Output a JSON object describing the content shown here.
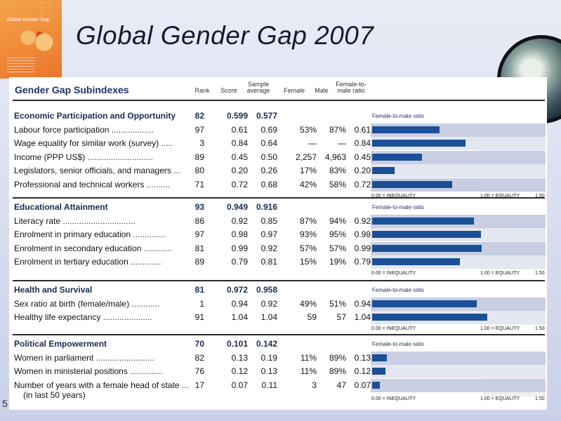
{
  "slide": {
    "title": "Global Gender Gap 2007",
    "page_number": "5",
    "cover_title": "Global Gender Gap"
  },
  "table": {
    "heading": "Gender Gap Subindexes",
    "columns": {
      "rank": "Rank",
      "score": "Score",
      "sample1": "Sample",
      "sample2": "average",
      "female": "Female",
      "male": "Male",
      "ratio1": "Female-to-",
      "ratio2": "male ratio"
    },
    "chart_title": "Female-to-male ratio",
    "axis": {
      "min": "0.00 = INEQUALITY",
      "mid": "1.00 = EQUALITY",
      "max": "1.50"
    },
    "sections": [
      {
        "name": "Economic Participation and Opportunity",
        "rank": "82",
        "score": "0.599",
        "average": "0.577",
        "rows": [
          {
            "label": "Labour force participation",
            "rank": "97",
            "score": "0.61",
            "average": "0.69",
            "female": "53%",
            "male": "87%",
            "ratio": "0.61",
            "ratio_value": 0.61
          },
          {
            "label": "Wage equality for similar work (survey)",
            "rank": "3",
            "score": "0.84",
            "average": "0.64",
            "female": "—",
            "male": "—",
            "ratio": "0.84",
            "ratio_value": 0.84
          },
          {
            "label": "Income (PPP US$)",
            "rank": "89",
            "score": "0.45",
            "average": "0.50",
            "female": "2,257",
            "male": "4,963",
            "ratio": "0.45",
            "ratio_value": 0.45
          },
          {
            "label": "Legislators, senior officials, and managers",
            "rank": "80",
            "score": "0.20",
            "average": "0.26",
            "female": "17%",
            "male": "83%",
            "ratio": "0.20",
            "ratio_value": 0.2
          },
          {
            "label": "Professional and technical workers",
            "rank": "71",
            "score": "0.72",
            "average": "0.68",
            "female": "42%",
            "male": "58%",
            "ratio": "0.72",
            "ratio_value": 0.72
          }
        ]
      },
      {
        "name": "Educational Attainment",
        "rank": "93",
        "score": "0.949",
        "average": "0.916",
        "rows": [
          {
            "label": "Literacy rate",
            "rank": "86",
            "score": "0.92",
            "average": "0.85",
            "female": "87%",
            "male": "94%",
            "ratio": "0.92",
            "ratio_value": 0.92
          },
          {
            "label": "Enrolment in primary education",
            "rank": "97",
            "score": "0.98",
            "average": "0.97",
            "female": "93%",
            "male": "95%",
            "ratio": "0.98",
            "ratio_value": 0.98
          },
          {
            "label": "Enrolment in secondary education",
            "rank": "81",
            "score": "0.99",
            "average": "0.92",
            "female": "57%",
            "male": "57%",
            "ratio": "0.99",
            "ratio_value": 0.99
          },
          {
            "label": "Enrolment in tertiary education",
            "rank": "89",
            "score": "0.79",
            "average": "0.81",
            "female": "15%",
            "male": "19%",
            "ratio": "0.79",
            "ratio_value": 0.79
          }
        ]
      },
      {
        "name": "Health and Survival",
        "rank": "81",
        "score": "0.972",
        "average": "0.958",
        "rows": [
          {
            "label": "Sex ratio at birth (female/male)",
            "rank": "1",
            "score": "0.94",
            "average": "0.92",
            "female": "49%",
            "male": "51%",
            "ratio": "0.94",
            "ratio_value": 0.94
          },
          {
            "label": "Healthy life expectancy",
            "rank": "91",
            "score": "1.04",
            "average": "1.04",
            "female": "59",
            "male": "57",
            "ratio": "1.04",
            "ratio_value": 1.04
          }
        ]
      },
      {
        "name": "Political Empowerment",
        "rank": "70",
        "score": "0.101",
        "average": "0.142",
        "rows": [
          {
            "label": "Women in parliament",
            "rank": "82",
            "score": "0.13",
            "average": "0.19",
            "female": "11%",
            "male": "89%",
            "ratio": "0.13",
            "ratio_value": 0.13
          },
          {
            "label": "Women in ministerial positions",
            "rank": "76",
            "score": "0.12",
            "average": "0.13",
            "female": "11%",
            "male": "89%",
            "ratio": "0.12",
            "ratio_value": 0.12
          },
          {
            "label": "Number of years with a female head of state",
            "rank": "17",
            "score": "0.07",
            "average": "0.11",
            "female": "3",
            "male": "47",
            "ratio": "0.07",
            "ratio_value": 0.07,
            "sublabel": "(in last 50 years)"
          }
        ]
      }
    ]
  },
  "chart_data": {
    "type": "bar",
    "title": "Female-to-male ratio",
    "xlim": [
      0,
      1.5
    ],
    "categories": [
      "Labour force participation",
      "Wage equality for similar work (survey)",
      "Income (PPP US$)",
      "Legislators, senior officials, and managers",
      "Professional and technical workers",
      "Literacy rate",
      "Enrolment in primary education",
      "Enrolment in secondary education",
      "Enrolment in tertiary education",
      "Sex ratio at birth (female/male)",
      "Healthy life expectancy",
      "Women in parliament",
      "Women in ministerial positions",
      "Number of years with a female head of state"
    ],
    "values": [
      0.61,
      0.84,
      0.45,
      0.2,
      0.72,
      0.92,
      0.98,
      0.99,
      0.79,
      0.94,
      1.04,
      0.13,
      0.12,
      0.07
    ],
    "colors": {
      "bar": "#1b4f96",
      "band": "#c9cfe2"
    }
  }
}
